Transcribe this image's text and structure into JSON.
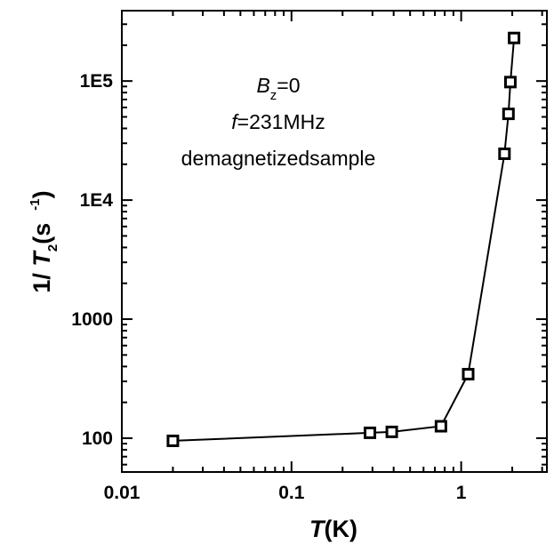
{
  "chart_data": {
    "type": "scatter",
    "x_scale": "log",
    "y_scale": "log",
    "xlim": [
      0.01,
      3.2
    ],
    "ylim": [
      52,
      390000
    ],
    "x_ticks": [
      0.01,
      0.1,
      1
    ],
    "x_tick_labels": [
      "0.01",
      "0.1",
      "1"
    ],
    "y_ticks": [
      100,
      1000,
      10000,
      100000
    ],
    "y_tick_labels": [
      "100",
      "1000",
      "1E4",
      "1E5"
    ],
    "xlabel": {
      "italic": "T",
      "rest": "(K)"
    },
    "ylabel": {
      "prefix": "1/ ",
      "italic": "T",
      "sub": "2",
      "rest": "(s",
      "sup": "-1",
      "close": ")"
    },
    "annotation": {
      "line1": {
        "italic": "B",
        "sub": "z",
        "rest": "=0"
      },
      "line2": {
        "italic": "f",
        "rest": "=231MHz"
      },
      "line3": "demagnetizedsample"
    },
    "series": [
      {
        "marker": "open-square",
        "connected": true,
        "color": "#000000",
        "points": [
          {
            "x": 0.02,
            "y": 95
          },
          {
            "x": 0.29,
            "y": 111
          },
          {
            "x": 0.39,
            "y": 113
          },
          {
            "x": 0.76,
            "y": 126
          },
          {
            "x": 1.1,
            "y": 345
          },
          {
            "x": 1.8,
            "y": 24500
          },
          {
            "x": 1.9,
            "y": 53000
          },
          {
            "x": 1.95,
            "y": 98000
          },
          {
            "x": 2.05,
            "y": 230000
          }
        ]
      }
    ]
  }
}
